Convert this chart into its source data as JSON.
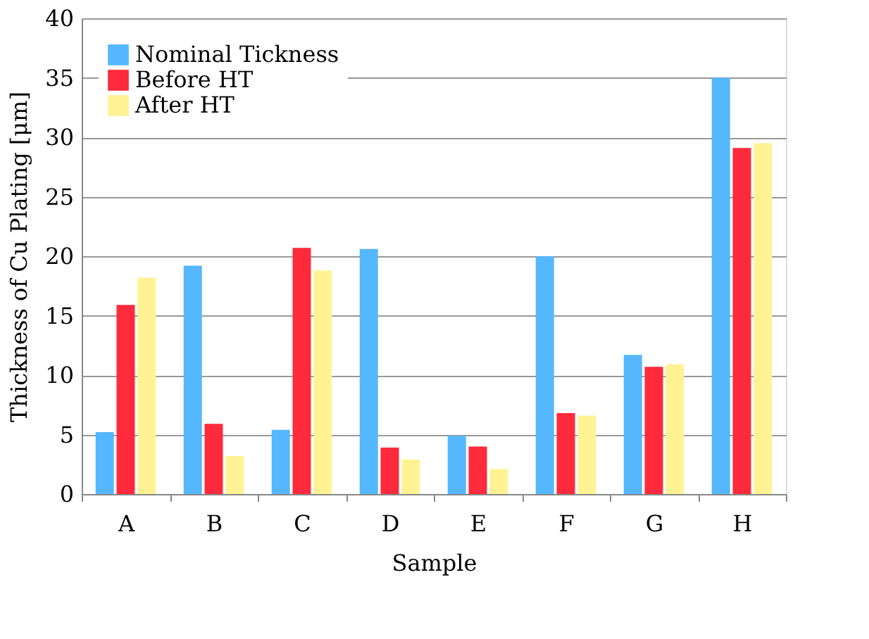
{
  "chart_data": {
    "type": "bar",
    "xlabel": "Sample",
    "ylabel": "Thickness of Cu Plating [μm]",
    "categories": [
      "A",
      "B",
      "C",
      "D",
      "E",
      "F",
      "G",
      "H"
    ],
    "series": [
      {
        "name": "Nominal Tickness",
        "color": "#55b8ff",
        "values": [
          5.2,
          19.2,
          5.4,
          20.6,
          4.9,
          20.0,
          11.7,
          35.0
        ]
      },
      {
        "name": "Before HT",
        "color": "#ff2a3c",
        "values": [
          15.9,
          5.9,
          20.7,
          3.9,
          4.0,
          6.8,
          10.7,
          29.1
        ]
      },
      {
        "name": "After HT",
        "color": "#fff294",
        "values": [
          18.2,
          3.2,
          18.8,
          2.9,
          2.1,
          6.6,
          10.9,
          29.5
        ]
      }
    ],
    "ylim": [
      0,
      40
    ],
    "yticks": [
      0,
      5,
      10,
      15,
      20,
      25,
      30,
      35,
      40
    ],
    "grid": "y",
    "legend": "top left"
  }
}
